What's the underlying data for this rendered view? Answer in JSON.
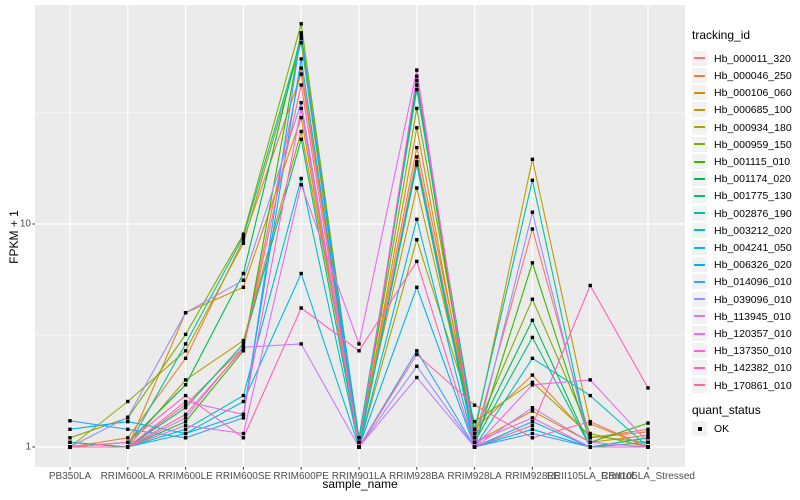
{
  "chart_data": {
    "type": "line",
    "title": "",
    "xlabel": "sample_name",
    "ylabel": "FPKM + 1",
    "y_scale": "log10",
    "y_tick_labels": [
      "1",
      "10"
    ],
    "y_ticks": [
      1,
      10
    ],
    "y_minor_ticks": [
      3.162,
      31.62
    ],
    "ylim": [
      0.81,
      96
    ],
    "grid": "on",
    "legend_position": "right",
    "marker": "black-square",
    "categories": [
      "PB350LA",
      "RRIM600LA",
      "RRIM600LE",
      "RRIM600SE",
      "RRIM600PE",
      "RRIM901LA",
      "RRIM928BA",
      "RRIM928LA",
      "RRIM928LE",
      "RRII105LA_Control",
      "RRII105LA_Stressed"
    ],
    "series": [
      {
        "name": "Hb_000011_320",
        "color": "#F8766D",
        "values": [
          1.0,
          1.0,
          1.55,
          2.8,
          50,
          1.0,
          20,
          1.1,
          9.5,
          1.1,
          1.2
        ]
      },
      {
        "name": "Hb_000046_250",
        "color": "#EA8331",
        "values": [
          1.0,
          1.1,
          2.5,
          8.5,
          47,
          1.05,
          22,
          1.2,
          2.1,
          1.1,
          1.17
        ]
      },
      {
        "name": "Hb_000106_060",
        "color": "#D89000",
        "values": [
          1.05,
          1.0,
          4.0,
          5.2,
          30,
          1.0,
          27,
          1.05,
          1.45,
          1.05,
          1.13
        ]
      },
      {
        "name": "Hb_000685_100",
        "color": "#C09B00",
        "values": [
          1.0,
          1.0,
          2.0,
          3.0,
          26,
          1.1,
          14.5,
          1.15,
          19.5,
          1.27,
          1.0
        ]
      },
      {
        "name": "Hb_000934_180",
        "color": "#A3A500",
        "values": [
          1.0,
          1.6,
          2.7,
          8.2,
          65,
          1.0,
          8.5,
          1.3,
          1.95,
          1.12,
          1.05
        ]
      },
      {
        "name": "Hb_000959_150",
        "color": "#7CAE00",
        "values": [
          1.1,
          1.35,
          3.2,
          9.0,
          79,
          1.05,
          33,
          1.15,
          4.6,
          1.15,
          1.0
        ]
      },
      {
        "name": "Hb_001115_010",
        "color": "#39B600",
        "values": [
          1.0,
          1.0,
          1.3,
          2.7,
          70,
          1.0,
          42,
          1.0,
          6.7,
          1.05,
          1.28
        ]
      },
      {
        "name": "Hb_001174_020",
        "color": "#00BB4E",
        "values": [
          1.0,
          1.05,
          1.9,
          6.0,
          71,
          1.0,
          44,
          1.1,
          3.7,
          1.0,
          1.1
        ]
      },
      {
        "name": "Hb_001775_130",
        "color": "#00BF7D",
        "values": [
          1.0,
          1.0,
          1.5,
          2.9,
          24,
          1.0,
          19,
          1.05,
          3.1,
          1.0,
          1.05
        ]
      },
      {
        "name": "Hb_002876_190",
        "color": "#00C1A3",
        "values": [
          1.05,
          1.0,
          2.9,
          8.8,
          68,
          1.1,
          40,
          1.2,
          15.7,
          1.0,
          1.1
        ]
      },
      {
        "name": "Hb_003212_020",
        "color": "#00BFC4",
        "values": [
          1.0,
          1.0,
          1.2,
          1.7,
          16,
          1.0,
          18.4,
          1.0,
          2.5,
          1.7,
          1.0
        ]
      },
      {
        "name": "Hb_004241_050",
        "color": "#00BAE0",
        "values": [
          1.0,
          1.0,
          1.15,
          1.6,
          6.0,
          1.0,
          10.5,
          1.0,
          1.3,
          1.0,
          1.0
        ]
      },
      {
        "name": "Hb_006326_020",
        "color": "#00B0F6",
        "values": [
          1.2,
          1.3,
          1.15,
          1.4,
          55,
          1.0,
          5.2,
          1.0,
          1.2,
          1.0,
          1.0
        ]
      },
      {
        "name": "Hb_014096_010",
        "color": "#35A2FF",
        "values": [
          1.31,
          1.2,
          1.1,
          1.35,
          72,
          1.0,
          2.7,
          1.0,
          1.15,
          1.0,
          1.0
        ]
      },
      {
        "name": "Hb_039096_010",
        "color": "#9590FF",
        "values": [
          1.0,
          1.36,
          4.0,
          5.6,
          35,
          1.0,
          2.3,
          1.0,
          11.3,
          1.0,
          1.0
        ]
      },
      {
        "name": "Hb_113945_010",
        "color": "#C77CFF",
        "values": [
          1.0,
          1.0,
          1.35,
          2.8,
          2.9,
          1.0,
          2.05,
          1.0,
          1.5,
          1.05,
          1.0
        ]
      },
      {
        "name": "Hb_120357_010",
        "color": "#E76BF3",
        "values": [
          1.0,
          1.0,
          1.25,
          1.15,
          15,
          2.9,
          49,
          1.0,
          1.9,
          2.0,
          1.05
        ]
      },
      {
        "name": "Hb_137350_010",
        "color": "#FA62DB",
        "values": [
          1.0,
          1.0,
          1.6,
          1.4,
          33,
          1.0,
          46,
          1.05,
          1.35,
          1.0,
          1.0
        ]
      },
      {
        "name": "Hb_142382_010",
        "color": "#FF62BC",
        "values": [
          1.0,
          1.05,
          1.7,
          1.1,
          4.2,
          2.7,
          6.8,
          1.0,
          1.25,
          5.3,
          1.84
        ]
      },
      {
        "name": "Hb_170861_010",
        "color": "#FF6A98",
        "values": [
          1.0,
          1.0,
          1.4,
          2.75,
          42,
          1.0,
          2.6,
          1.54,
          1.1,
          1.3,
          1.0
        ]
      }
    ]
  },
  "legend": {
    "title": "tracking_id"
  },
  "legend2": {
    "title": "quant_status",
    "items": [
      {
        "label": "OK"
      }
    ]
  },
  "colors": {
    "panel_bg": "#EBEBEB",
    "grid_major": "#FFFFFF",
    "grid_minor": "#F5F5F5",
    "tick_text": "#4D4D4D",
    "axis_text": "#000000",
    "legend_key_bg": "#F2F2F2",
    "marker": "#000000",
    "page_bg": "#FFFFFF"
  }
}
